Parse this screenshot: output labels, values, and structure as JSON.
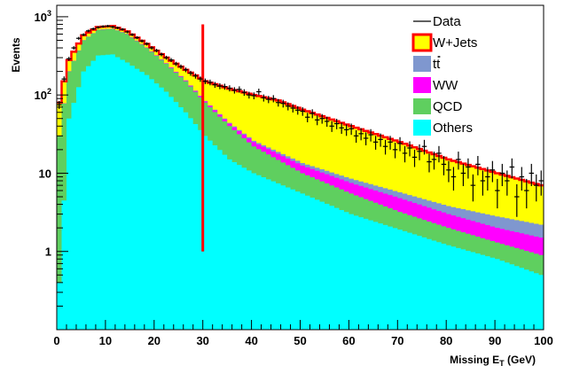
{
  "chart_data": {
    "type": "histogram",
    "log_y": true,
    "xlim": [
      0,
      100
    ],
    "ylim": [
      0.1,
      1400
    ],
    "bin_width": 1,
    "xlabel": "Missing E",
    "xlabel_sub": "T",
    "xlabel_unit": " (GeV)",
    "ylabel": "Events",
    "x_ticks": [
      "0",
      "10",
      "20",
      "30",
      "40",
      "50",
      "60",
      "70",
      "80",
      "90",
      "100"
    ],
    "y_ticks": [
      {
        "value": 1,
        "base": "1",
        "exp": ""
      },
      {
        "value": 10,
        "base": "10",
        "exp": ""
      },
      {
        "value": 100,
        "base": "10",
        "exp": "2"
      },
      {
        "value": 1000,
        "base": "10",
        "exp": "3"
      }
    ],
    "cut_line": {
      "x": 30,
      "y_low": 1,
      "y_high": 800,
      "color": "#ff0000"
    },
    "legend_position": "top-right",
    "legend": [
      {
        "label": "Data",
        "kind": "line"
      },
      {
        "label": "W+Jets",
        "kind": "box",
        "color": "#ffff00",
        "edge": "#ff0000"
      },
      {
        "label": "tt",
        "kind": "box",
        "color": "#7f97cf",
        "overline": true
      },
      {
        "label": "WW",
        "kind": "box",
        "color": "#ff00ff"
      },
      {
        "label": "QCD",
        "kind": "box",
        "color": "#5fcf5f"
      },
      {
        "label": "Others",
        "kind": "box",
        "color": "#00ffff"
      }
    ],
    "series": [
      {
        "name": "Others",
        "color": "#00ffff",
        "cumulative": true,
        "anchors": [
          [
            0.5,
            0.4
          ],
          [
            2.5,
            50
          ],
          [
            5.5,
            200
          ],
          [
            8.5,
            320
          ],
          [
            11.5,
            330
          ],
          [
            14.5,
            260
          ],
          [
            18.5,
            180
          ],
          [
            22.5,
            110
          ],
          [
            26.5,
            60
          ],
          [
            30.5,
            30
          ],
          [
            35.5,
            15
          ],
          [
            40.5,
            10
          ],
          [
            50.5,
            5.5
          ],
          [
            60.5,
            3
          ],
          [
            70.5,
            1.9
          ],
          [
            80.5,
            1.2
          ],
          [
            90.5,
            0.8
          ],
          [
            99.5,
            0.5
          ]
        ]
      },
      {
        "name": "QCD",
        "color": "#5fcf5f",
        "cumulative": true,
        "anchors": [
          [
            0.5,
            30
          ],
          [
            2.5,
            200
          ],
          [
            5.5,
            500
          ],
          [
            8.5,
            680
          ],
          [
            11.5,
            700
          ],
          [
            14.5,
            600
          ],
          [
            18.5,
            400
          ],
          [
            22.5,
            250
          ],
          [
            26.5,
            150
          ],
          [
            30.5,
            80
          ],
          [
            35.5,
            40
          ],
          [
            40.5,
            22
          ],
          [
            50.5,
            10
          ],
          [
            60.5,
            5.5
          ],
          [
            70.5,
            3.2
          ],
          [
            80.5,
            2.0
          ],
          [
            90.5,
            1.3
          ],
          [
            99.5,
            0.9
          ]
        ]
      },
      {
        "name": "WW",
        "color": "#ff00ff",
        "cumulative": true,
        "anchors": [
          [
            0.5,
            30.2
          ],
          [
            2.5,
            201
          ],
          [
            5.5,
            502
          ],
          [
            8.5,
            683
          ],
          [
            11.5,
            703
          ],
          [
            14.5,
            604
          ],
          [
            18.5,
            404
          ],
          [
            22.5,
            254
          ],
          [
            26.5,
            153
          ],
          [
            30.5,
            83
          ],
          [
            35.5,
            43
          ],
          [
            40.5,
            25
          ],
          [
            50.5,
            12.5
          ],
          [
            60.5,
            7.5
          ],
          [
            70.5,
            4.8
          ],
          [
            80.5,
            3.0
          ],
          [
            90.5,
            2.0
          ],
          [
            99.5,
            1.5
          ]
        ]
      },
      {
        "name": "tt",
        "color": "#7f97cf",
        "cumulative": true,
        "anchors": [
          [
            0.5,
            30.3
          ],
          [
            2.5,
            201.5
          ],
          [
            5.5,
            503
          ],
          [
            8.5,
            684
          ],
          [
            11.5,
            704
          ],
          [
            14.5,
            605
          ],
          [
            18.5,
            405
          ],
          [
            22.5,
            255
          ],
          [
            26.5,
            154
          ],
          [
            30.5,
            84
          ],
          [
            35.5,
            44
          ],
          [
            40.5,
            26
          ],
          [
            50.5,
            13.5
          ],
          [
            60.5,
            8.5
          ],
          [
            70.5,
            5.7
          ],
          [
            80.5,
            3.8
          ],
          [
            90.5,
            2.8
          ],
          [
            99.5,
            2.2
          ]
        ]
      },
      {
        "name": "W+Jets",
        "color": "#ffff00",
        "edge": "#ff0000",
        "cumulative": true,
        "anchors": [
          [
            0.5,
            80
          ],
          [
            2.5,
            280
          ],
          [
            5.5,
            580
          ],
          [
            8.5,
            740
          ],
          [
            11.5,
            760
          ],
          [
            14.5,
            650
          ],
          [
            18.5,
            450
          ],
          [
            22.5,
            300
          ],
          [
            26.5,
            210
          ],
          [
            30.5,
            150
          ],
          [
            35.5,
            120
          ],
          [
            40.5,
            100
          ],
          [
            45.5,
            85
          ],
          [
            50.5,
            65
          ],
          [
            60.5,
            40
          ],
          [
            70.5,
            25
          ],
          [
            80.5,
            15
          ],
          [
            90.5,
            10
          ],
          [
            99.5,
            7
          ]
        ]
      }
    ],
    "data_points": [
      [
        0.5,
        75
      ],
      [
        1.5,
        160
      ],
      [
        2.5,
        290
      ],
      [
        3.5,
        400
      ],
      [
        4.5,
        530
      ],
      [
        5.5,
        590
      ],
      [
        6.5,
        660
      ],
      [
        7.5,
        700
      ],
      [
        8.5,
        730
      ],
      [
        9.5,
        750
      ],
      [
        10.5,
        760
      ],
      [
        11.5,
        740
      ],
      [
        12.5,
        720
      ],
      [
        13.5,
        690
      ],
      [
        14.5,
        640
      ],
      [
        15.5,
        590
      ],
      [
        16.5,
        540
      ],
      [
        17.5,
        490
      ],
      [
        18.5,
        450
      ],
      [
        19.5,
        400
      ],
      [
        20.5,
        370
      ],
      [
        21.5,
        330
      ],
      [
        22.5,
        300
      ],
      [
        23.5,
        280
      ],
      [
        24.5,
        250
      ],
      [
        25.5,
        230
      ],
      [
        26.5,
        210
      ],
      [
        27.5,
        190
      ],
      [
        28.5,
        175
      ],
      [
        29.5,
        160
      ],
      [
        30.5,
        150
      ],
      [
        31.5,
        145
      ],
      [
        32.5,
        135
      ],
      [
        33.5,
        130
      ],
      [
        34.5,
        128
      ],
      [
        35.5,
        122
      ],
      [
        36.5,
        115
      ],
      [
        37.5,
        118
      ],
      [
        38.5,
        108
      ],
      [
        39.5,
        100
      ],
      [
        40.5,
        98
      ],
      [
        41.5,
        110
      ],
      [
        42.5,
        92
      ],
      [
        43.5,
        88
      ],
      [
        44.5,
        90
      ],
      [
        45.5,
        80
      ],
      [
        46.5,
        78
      ],
      [
        47.5,
        72
      ],
      [
        48.5,
        68
      ],
      [
        49.5,
        64
      ],
      [
        50.5,
        62
      ],
      [
        51.5,
        52
      ],
      [
        52.5,
        58
      ],
      [
        53.5,
        48
      ],
      [
        54.5,
        50
      ],
      [
        55.5,
        46
      ],
      [
        56.5,
        40
      ],
      [
        57.5,
        43
      ],
      [
        58.5,
        38
      ],
      [
        59.5,
        36
      ],
      [
        60.5,
        37
      ],
      [
        61.5,
        30
      ],
      [
        62.5,
        32
      ],
      [
        63.5,
        28
      ],
      [
        64.5,
        31
      ],
      [
        65.5,
        25
      ],
      [
        66.5,
        27
      ],
      [
        67.5,
        22
      ],
      [
        68.5,
        25
      ],
      [
        69.5,
        20
      ],
      [
        70.5,
        24
      ],
      [
        71.5,
        18
      ],
      [
        72.5,
        21
      ],
      [
        73.5,
        16
      ],
      [
        74.5,
        19
      ],
      [
        75.5,
        22
      ],
      [
        76.5,
        14
      ],
      [
        77.5,
        15
      ],
      [
        78.5,
        18
      ],
      [
        79.5,
        13
      ],
      [
        80.5,
        11
      ],
      [
        81.5,
        9
      ],
      [
        82.5,
        15
      ],
      [
        83.5,
        10
      ],
      [
        84.5,
        12
      ],
      [
        85.5,
        7
      ],
      [
        86.5,
        13
      ],
      [
        87.5,
        8
      ],
      [
        88.5,
        9
      ],
      [
        89.5,
        11
      ],
      [
        90.5,
        6
      ],
      [
        91.5,
        10
      ],
      [
        92.5,
        8
      ],
      [
        93.5,
        12
      ],
      [
        94.5,
        5
      ],
      [
        95.5,
        9
      ],
      [
        96.5,
        6
      ],
      [
        97.5,
        10
      ],
      [
        98.5,
        7
      ],
      [
        99.5,
        8
      ]
    ]
  }
}
